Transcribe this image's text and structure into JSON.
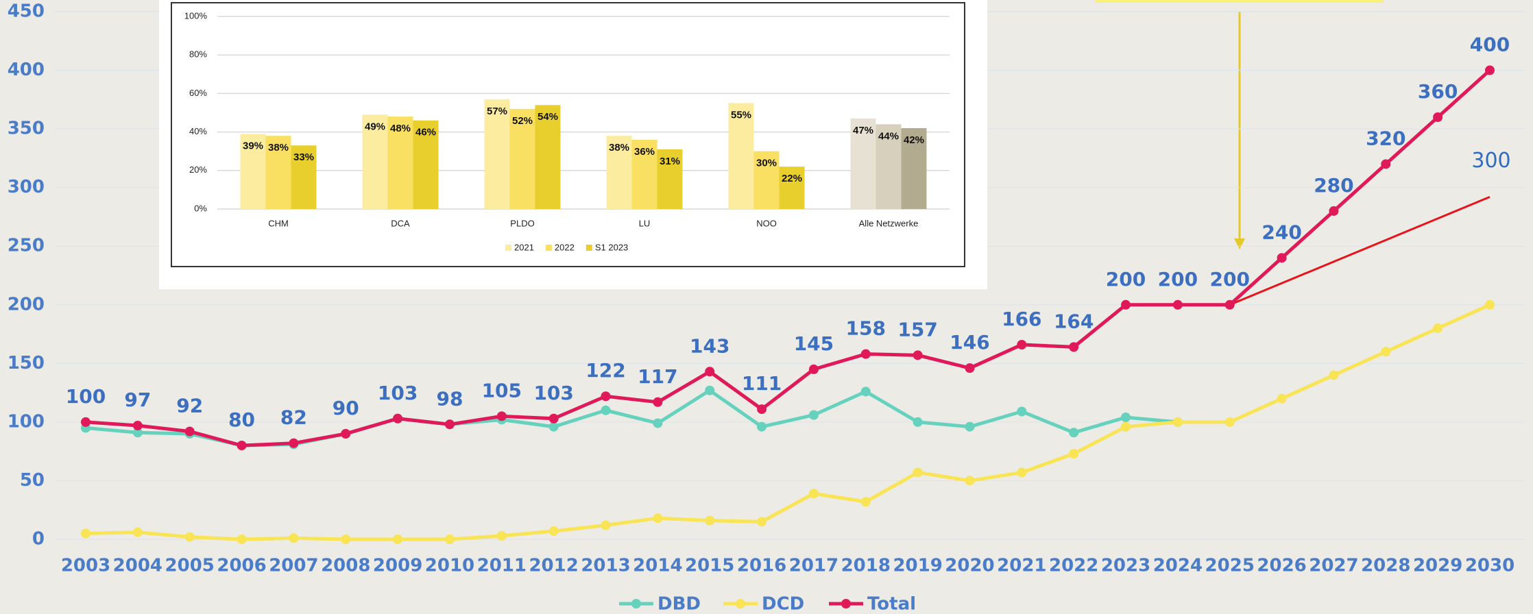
{
  "chart_data": [
    {
      "type": "line",
      "x": [
        2003,
        2004,
        2005,
        2006,
        2007,
        2008,
        2009,
        2010,
        2011,
        2012,
        2013,
        2014,
        2015,
        2016,
        2017,
        2018,
        2019,
        2020,
        2021,
        2022,
        2023,
        2024,
        2025,
        2026,
        2027,
        2028,
        2029,
        2030
      ],
      "xlim": [
        2003,
        2030
      ],
      "ylim": [
        0,
        450
      ],
      "yticks": [
        0,
        50,
        100,
        150,
        200,
        250,
        300,
        350,
        400,
        450
      ],
      "grid": true,
      "series": [
        {
          "name": "DBD",
          "color": "#66d1bd",
          "values": [
            95,
            91,
            90,
            80,
            81,
            90,
            103,
            98,
            102,
            96,
            110,
            99,
            127,
            96,
            106,
            126,
            100,
            96,
            109,
            91,
            104,
            100,
            null,
            null,
            null,
            null,
            null,
            null
          ]
        },
        {
          "name": "DCD",
          "color": "#f8e455",
          "values": [
            5,
            6,
            2,
            0,
            1,
            0,
            0,
            0,
            3,
            7,
            12,
            18,
            16,
            15,
            39,
            32,
            57,
            50,
            57,
            73,
            96,
            100,
            100,
            120,
            140,
            160,
            180,
            200
          ]
        },
        {
          "name": "Total",
          "color": "#e0195a",
          "values": [
            100,
            97,
            92,
            80,
            82,
            90,
            103,
            98,
            105,
            103,
            122,
            117,
            143,
            111,
            145,
            158,
            157,
            146,
            166,
            164,
            200,
            200,
            200,
            240,
            280,
            320,
            360,
            400
          ],
          "data_labels": true
        }
      ],
      "trend_line": {
        "x": [
          2025,
          2030
        ],
        "values": [
          200,
          292
        ],
        "label": "300",
        "color": "#e8141b"
      },
      "legend": "bottom"
    },
    {
      "type": "grouped_bar",
      "categories": [
        "CHM",
        "DCA",
        "PLDO",
        "LU",
        "NOO",
        "Alle Netzwerke"
      ],
      "ylim": [
        0,
        100
      ],
      "yticks": [
        {
          "value": 0,
          "label": "0%"
        },
        {
          "value": 20,
          "label": "20%"
        },
        {
          "value": 40,
          "label": "40%"
        },
        {
          "value": 60,
          "label": "60%"
        },
        {
          "value": 80,
          "label": "80%"
        },
        {
          "value": 100,
          "label": "100%"
        }
      ],
      "grid": true,
      "series": [
        {
          "name": "2021",
          "color": "#fbeca0",
          "colors": [
            "#fbeca0",
            "#fbeca0",
            "#fbeca0",
            "#fbeca0",
            "#fbeca0",
            "#e6e1d3"
          ],
          "values": [
            39,
            49,
            57,
            38,
            55,
            47
          ],
          "value_labels": [
            "39%",
            "49%",
            "57%",
            "38%",
            "55%",
            "47%"
          ]
        },
        {
          "name": "2022",
          "color": "#f9df62",
          "colors": [
            "#f9df62",
            "#f9df62",
            "#f9df62",
            "#f9df62",
            "#f9df62",
            "#d7d0bd"
          ],
          "values": [
            38,
            48,
            52,
            36,
            30,
            44
          ],
          "value_labels": [
            "38%",
            "48%",
            "52%",
            "36%",
            "30%",
            "44%"
          ]
        },
        {
          "name": "S1 2023",
          "color": "#e8cf2e",
          "colors": [
            "#e8cf2e",
            "#e8cf2e",
            "#e8cf2e",
            "#e8cf2e",
            "#e8cf2e",
            "#b3ab90"
          ],
          "values": [
            33,
            46,
            54,
            31,
            22,
            42
          ],
          "value_labels": [
            "33%",
            "46%",
            "54%",
            "31%",
            "22%",
            "42%"
          ]
        }
      ],
      "legend": "bottom"
    }
  ]
}
